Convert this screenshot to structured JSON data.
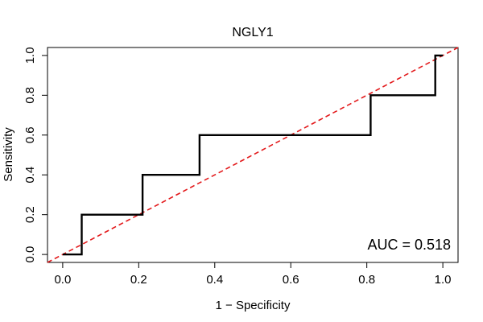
{
  "chart_data": {
    "type": "line",
    "title": "NGLY1",
    "xlabel": "1 − Specificity",
    "ylabel": "Sensitivity",
    "xlim": [
      -0.04,
      1.04
    ],
    "ylim": [
      -0.04,
      1.04
    ],
    "x_ticks": [
      0.0,
      0.2,
      0.4,
      0.6,
      0.8,
      1.0
    ],
    "x_tick_labels": [
      "0.0",
      "0.2",
      "0.4",
      "0.6",
      "0.8",
      "1.0"
    ],
    "y_ticks": [
      0.0,
      0.2,
      0.4,
      0.6,
      0.8,
      1.0
    ],
    "y_tick_labels": [
      "0.0",
      "0.2",
      "0.4",
      "0.6",
      "0.8",
      "1.0"
    ],
    "grid": false,
    "series": [
      {
        "name": "ROC curve",
        "color": "#000000",
        "style": "solid",
        "x": [
          0.0,
          0.05,
          0.05,
          0.21,
          0.21,
          0.36,
          0.36,
          0.81,
          0.81,
          0.98,
          0.98,
          1.0
        ],
        "y": [
          0.0,
          0.0,
          0.2,
          0.2,
          0.4,
          0.4,
          0.6,
          0.6,
          0.8,
          0.8,
          1.0,
          1.0
        ]
      },
      {
        "name": "Reference diagonal",
        "color": "#e31a1c",
        "style": "dashed",
        "x": [
          -0.04,
          1.04
        ],
        "y": [
          -0.04,
          1.04
        ]
      }
    ],
    "annotations": [
      {
        "text": "AUC = 0.518",
        "position": "bottom-right"
      }
    ]
  }
}
